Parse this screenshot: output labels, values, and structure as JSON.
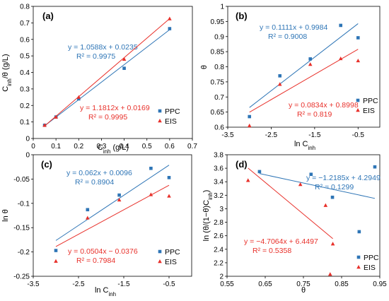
{
  "chart_data": [
    {
      "id": "a",
      "panel_label": "(a)",
      "type": "scatter",
      "xlabel": "C_inh (g/L)",
      "ylabel": "C_inh/θ (g/L)",
      "xlim": [
        0,
        0.7
      ],
      "ylim": [
        0,
        0.8
      ],
      "xticks": [
        0,
        0.1,
        0.2,
        0.3,
        0.4,
        0.5,
        0.6,
        0.7
      ],
      "xtick_labels": [
        "0",
        "0.1",
        "0.2",
        "0.3",
        "0.4",
        "0.5",
        "0.6",
        "0.7"
      ],
      "yticks": [
        0,
        0.1,
        0.2,
        0.3,
        0.4,
        0.5,
        0.6,
        0.7,
        0.8
      ],
      "ytick_labels": [
        "0",
        "0.1",
        "0.2",
        "0.3",
        "0.4",
        "0.5",
        "0.6",
        "0.7",
        "0.8"
      ],
      "legend_position": "bottom-right",
      "series": [
        {
          "name": "PPC",
          "color": "#2E75B6",
          "marker": "square",
          "points": [
            [
              0.05,
              0.08
            ],
            [
              0.1,
              0.13
            ],
            [
              0.2,
              0.24
            ],
            [
              0.4,
              0.425
            ],
            [
              0.6,
              0.665
            ]
          ],
          "fit": {
            "slope": 1.0588,
            "intercept": 0.0235,
            "x_range": [
              0.05,
              0.6
            ]
          },
          "equation": "y = 1.0588x + 0.0235",
          "r2": "R² = 0.9975"
        },
        {
          "name": "EIS",
          "color": "#E8302A",
          "marker": "triangle",
          "points": [
            [
              0.05,
              0.08
            ],
            [
              0.1,
              0.13
            ],
            [
              0.2,
              0.25
            ],
            [
              0.4,
              0.48
            ],
            [
              0.6,
              0.725
            ]
          ],
          "fit": {
            "slope": 1.1812,
            "intercept": 0.0169,
            "x_range": [
              0.05,
              0.6
            ]
          },
          "equation": "y = 1.1812x + 0.0169",
          "r2": "R² = 0.9995"
        }
      ]
    },
    {
      "id": "b",
      "panel_label": "(b)",
      "type": "scatter",
      "xlabel": "ln C_inh",
      "ylabel": "θ",
      "xlim": [
        -3.5,
        0
      ],
      "ylim": [
        0.6,
        1.0
      ],
      "xticks": [
        -3.5,
        -2.5,
        -1.5,
        -0.5
      ],
      "xtick_labels": [
        "-3.5",
        "-2.5",
        "-1.5",
        "-0.5"
      ],
      "yticks": [
        0.6,
        0.65,
        0.7,
        0.75,
        0.8,
        0.85,
        0.9,
        0.95,
        1.0
      ],
      "ytick_labels": [
        "0.6",
        "0.65",
        "0.7",
        "0.75",
        "0.8",
        "0.85",
        "0.9",
        "0.95",
        "1"
      ],
      "legend_position": "bottom-right",
      "series": [
        {
          "name": "PPC",
          "color": "#2E75B6",
          "marker": "square",
          "points": [
            [
              -3.0,
              0.635
            ],
            [
              -2.3,
              0.77
            ],
            [
              -1.6,
              0.826
            ],
            [
              -0.9,
              0.937
            ],
            [
              -0.5,
              0.896
            ]
          ],
          "fit": {
            "slope": 0.1111,
            "intercept": 0.9984,
            "x_range": [
              -3.0,
              -0.5
            ]
          },
          "equation": "y = 0.1111x + 0.9984",
          "r2": "R² = 0.9008"
        },
        {
          "name": "EIS",
          "color": "#E8302A",
          "marker": "triangle",
          "points": [
            [
              -3.0,
              0.605
            ],
            [
              -2.3,
              0.742
            ],
            [
              -1.6,
              0.808
            ],
            [
              -0.9,
              0.827
            ],
            [
              -0.5,
              0.82
            ]
          ],
          "fit": {
            "slope": 0.0834,
            "intercept": 0.8998,
            "x_range": [
              -3.0,
              -0.5
            ]
          },
          "equation": "y = 0.0834x + 0.8998",
          "r2": "R² = 0.819"
        }
      ]
    },
    {
      "id": "c",
      "panel_label": "(c)",
      "type": "scatter",
      "xlabel": "ln C_inh",
      "ylabel": "ln θ",
      "xlim": [
        -3.5,
        0
      ],
      "ylim": [
        -0.25,
        0
      ],
      "xticks": [
        -3.5,
        -2.5,
        -1.5,
        -0.5
      ],
      "xtick_labels": [
        "-3.5",
        "-2.5",
        "-1.5",
        "-0.5"
      ],
      "yticks": [
        -0.25,
        -0.2,
        -0.15,
        -0.1,
        -0.05,
        0
      ],
      "ytick_labels": [
        "-0.25",
        "-0.2",
        "-0.15",
        "-0.1",
        "-0.05",
        "0"
      ],
      "legend_position": "bottom-right",
      "series": [
        {
          "name": "PPC",
          "color": "#2E75B6",
          "marker": "square",
          "points": [
            [
              -3.0,
              -0.197
            ],
            [
              -2.3,
              -0.113
            ],
            [
              -1.6,
              -0.083
            ],
            [
              -0.9,
              -0.028
            ],
            [
              -0.5,
              -0.047
            ]
          ],
          "fit": {
            "slope": 0.062,
            "intercept": 0.0096,
            "x_range": [
              -3.0,
              -0.5
            ]
          },
          "equation": "y = 0.062x + 0.0096",
          "r2": "R² = 0.8904"
        },
        {
          "name": "EIS",
          "color": "#E8302A",
          "marker": "triangle",
          "points": [
            [
              -3.0,
              -0.219
            ],
            [
              -2.3,
              -0.13
            ],
            [
              -1.6,
              -0.093
            ],
            [
              -0.9,
              -0.082
            ],
            [
              -0.5,
              -0.085
            ]
          ],
          "fit": {
            "slope": 0.0504,
            "intercept": -0.0376,
            "x_range": [
              -3.0,
              -0.5
            ]
          },
          "equation": "y = 0.0504x − 0.0376",
          "r2": "R² = 0.7984"
        }
      ]
    },
    {
      "id": "d",
      "panel_label": "(d)",
      "type": "scatter",
      "xlabel": "θ",
      "ylabel": "ln (θ/(1−θ)C_inh)",
      "xlim": [
        0.55,
        0.95
      ],
      "ylim": [
        2.0,
        3.8
      ],
      "xticks": [
        0.55,
        0.65,
        0.75,
        0.85,
        0.95
      ],
      "xtick_labels": [
        "0.55",
        "0.65",
        "0.75",
        "0.85",
        "0.95"
      ],
      "yticks": [
        2.0,
        2.2,
        2.4,
        2.6,
        2.8,
        3.0,
        3.2,
        3.4,
        3.6,
        3.8
      ],
      "ytick_labels": [
        "2",
        "2.2",
        "2.4",
        "2.6",
        "2.8",
        "3",
        "3.2",
        "3.4",
        "3.6",
        "3.8"
      ],
      "legend_position": "bottom-right",
      "series": [
        {
          "name": "PPC",
          "color": "#2E75B6",
          "marker": "square",
          "points": [
            [
              0.635,
              3.55
            ],
            [
              0.77,
              3.51
            ],
            [
              0.826,
              3.17
            ],
            [
              0.896,
              2.66
            ],
            [
              0.937,
              3.62
            ]
          ],
          "fit": {
            "slope": -1.2185,
            "intercept": 4.2949,
            "x_range": [
              0.635,
              0.937
            ]
          },
          "equation": "y = −1.2185x + 4.2949",
          "r2": "R² = 0.1299"
        },
        {
          "name": "EIS",
          "color": "#E8302A",
          "marker": "triangle",
          "points": [
            [
              0.605,
              3.42
            ],
            [
              0.742,
              3.36
            ],
            [
              0.808,
              3.05
            ],
            [
              0.82,
              2.03
            ],
            [
              0.827,
              2.48
            ]
          ],
          "fit": {
            "slope": -4.7064,
            "intercept": 6.4497,
            "x_range": [
              0.605,
              0.827
            ]
          },
          "equation": "y = −4.7064x + 6.4497",
          "r2": "R² = 0.5358"
        }
      ]
    }
  ]
}
